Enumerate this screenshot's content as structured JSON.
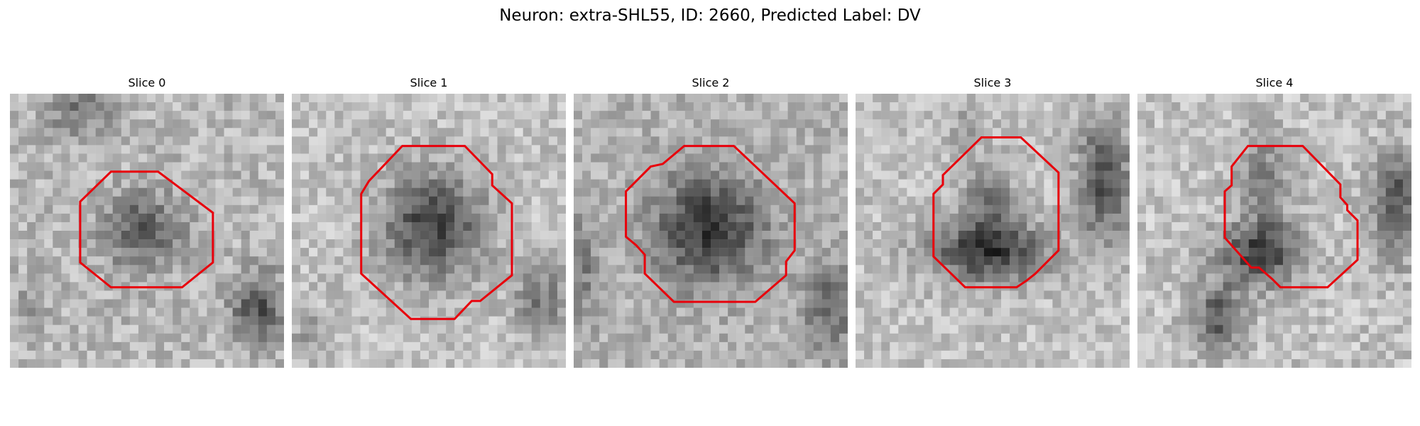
{
  "figure": {
    "title": "Neuron: extra-SHL55, ID: 2660, Predicted Label: DV"
  },
  "contour_color": "#e8000b",
  "colormap": "grayscale",
  "panels": [
    {
      "title": "Slice 0"
    },
    {
      "title": "Slice 1"
    },
    {
      "title": "Slice 2"
    },
    {
      "title": "Slice 3"
    },
    {
      "title": "Slice 4"
    }
  ]
}
